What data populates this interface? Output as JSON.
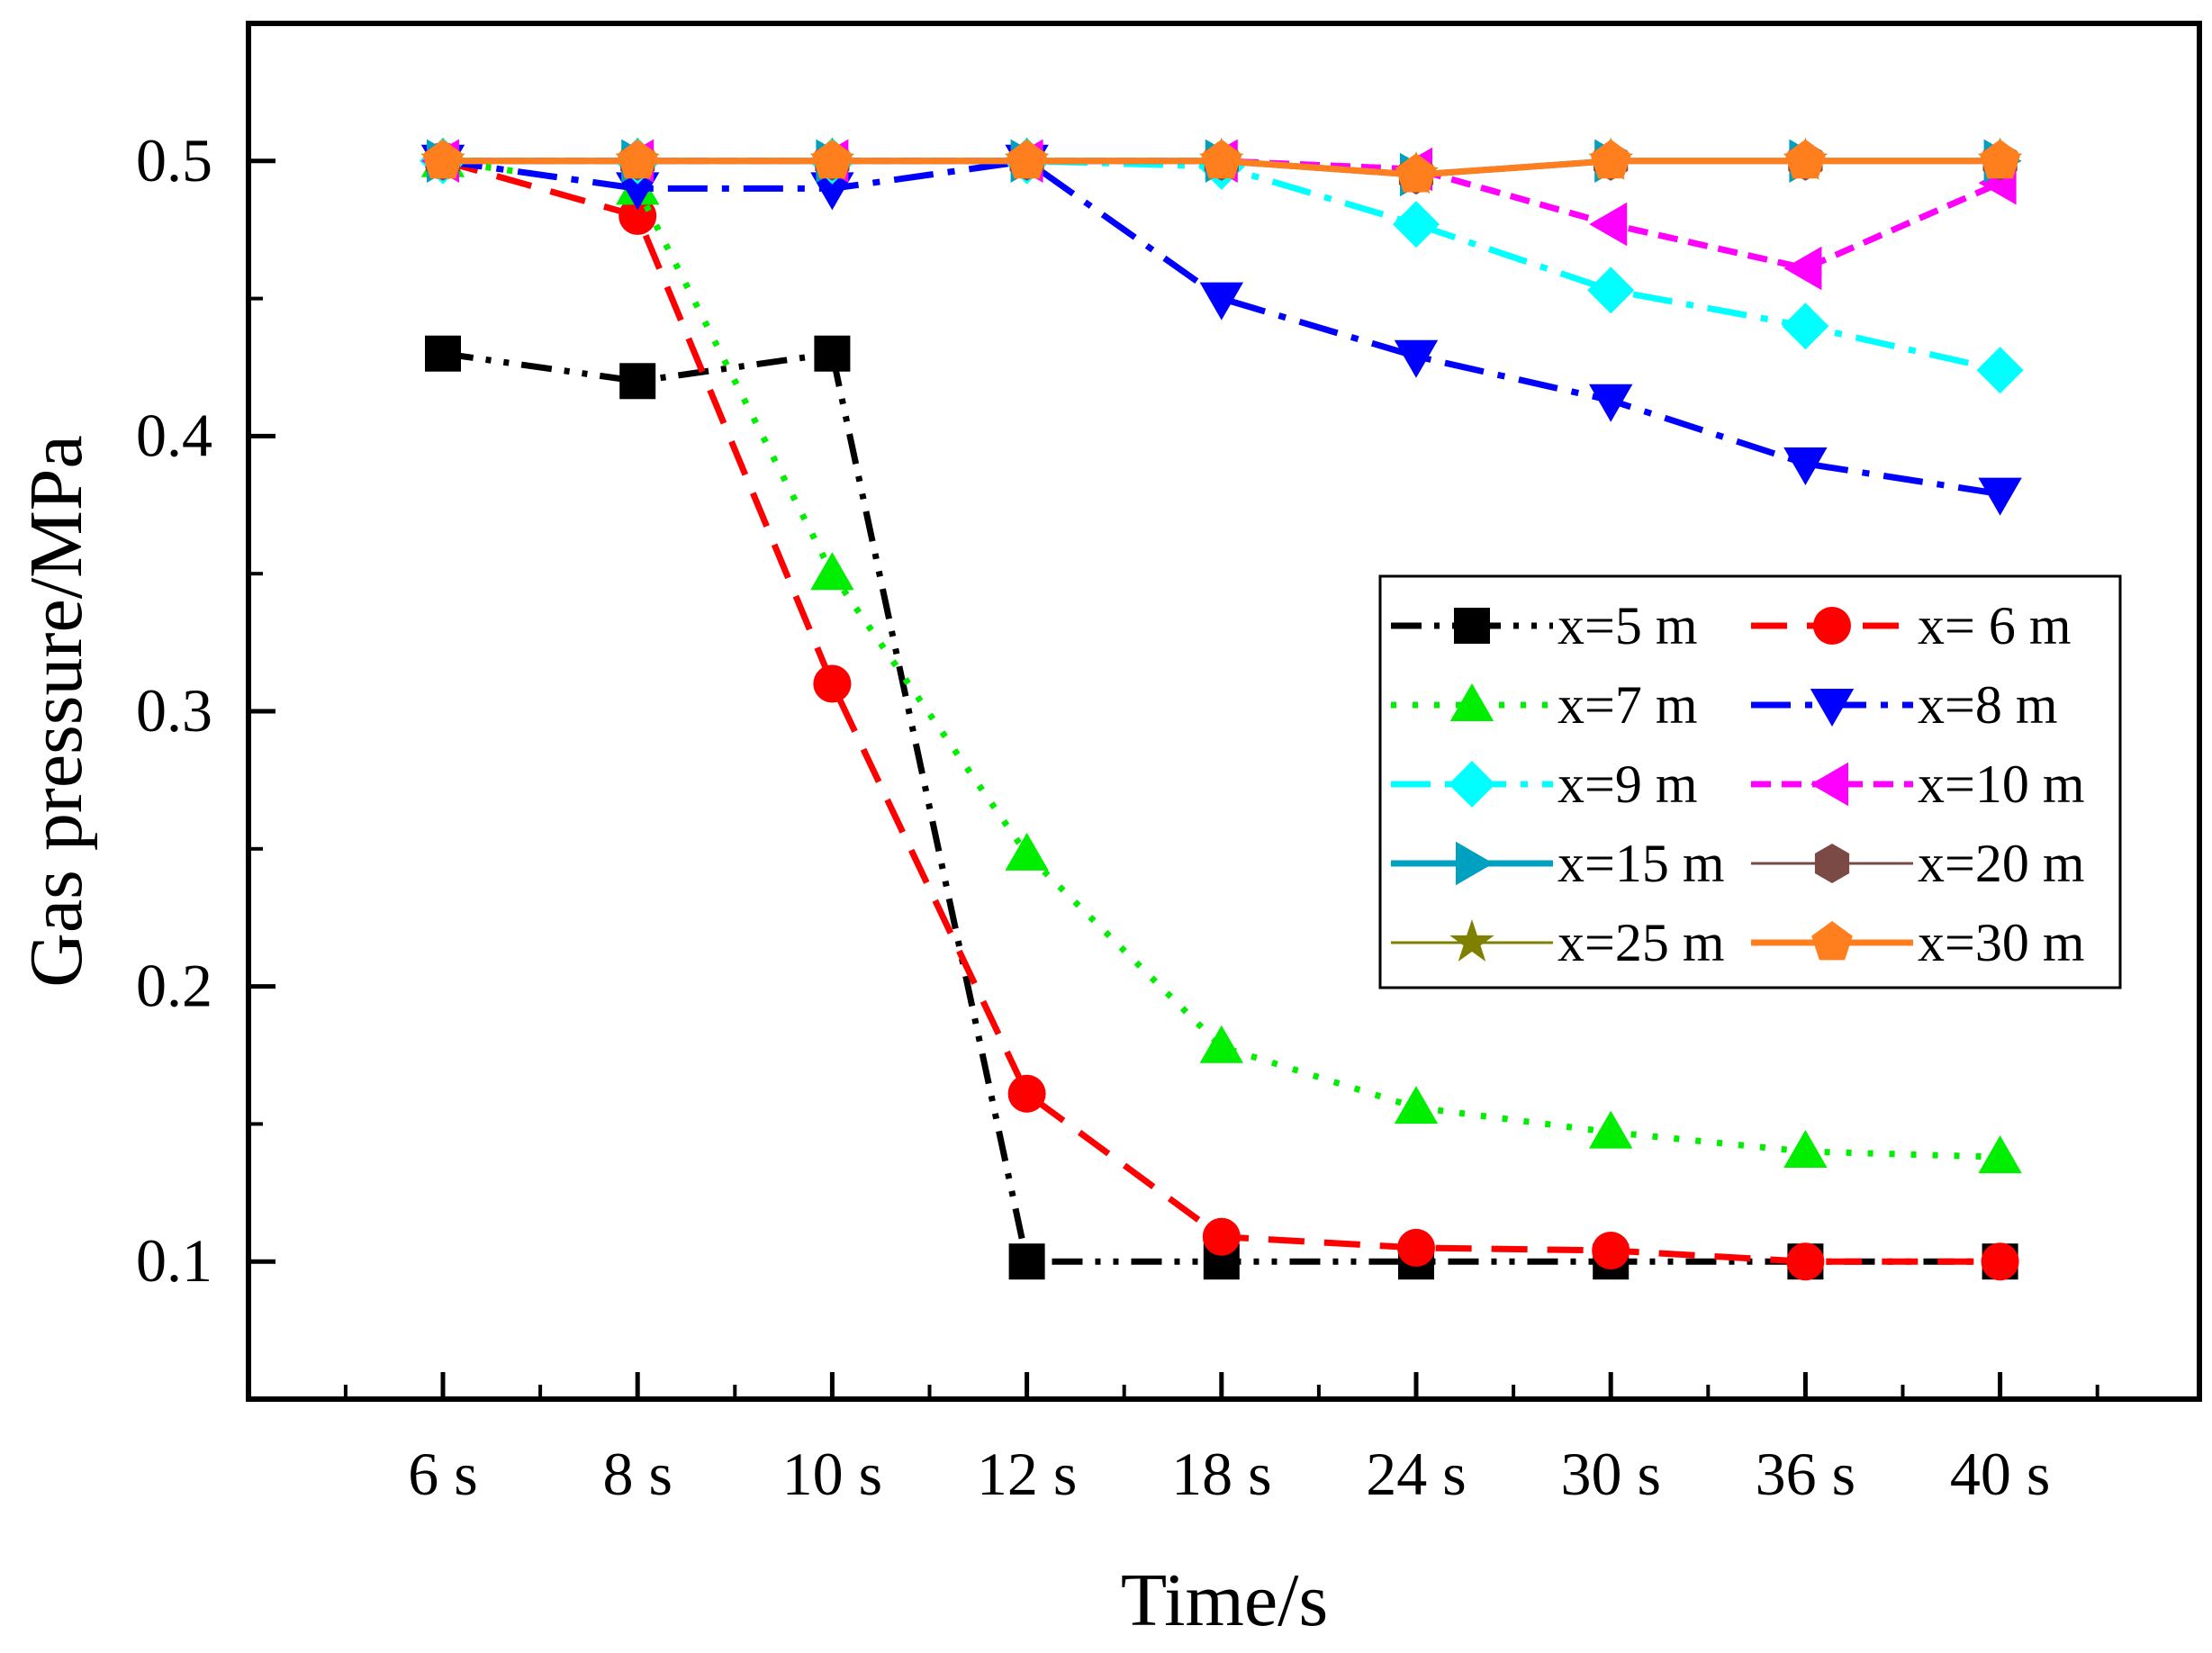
{
  "chart_data": {
    "type": "line",
    "title": "",
    "xlabel": "Time/s",
    "ylabel": "Gas pressure/MPa",
    "categories": [
      "6 s",
      "8 s",
      "10 s",
      "12 s",
      "18 s",
      "24 s",
      "30 s",
      "36 s",
      "40 s"
    ],
    "ylim": [
      0.05,
      0.55
    ],
    "yticks": [
      "0.1",
      "0.2",
      "0.3",
      "0.4",
      "0.5"
    ],
    "ytick_values": [
      0.1,
      0.2,
      0.3,
      0.4,
      0.5
    ],
    "legend_position": "center-right",
    "series": [
      {
        "name": "x=5 m",
        "color": "#000000",
        "marker": "square",
        "dash": "dashdotdot",
        "values": [
          0.43,
          0.42,
          0.43,
          0.1,
          0.1,
          0.1,
          0.1,
          0.1,
          0.1
        ]
      },
      {
        "name": "x= 6 m",
        "color": "#ff0000",
        "marker": "circle",
        "dash": "dash",
        "values": [
          0.5,
          0.48,
          0.31,
          0.161,
          0.109,
          0.105,
          0.104,
          0.1,
          0.1
        ]
      },
      {
        "name": "x=7 m",
        "color": "#00ee00",
        "marker": "triangle-up",
        "dash": "dot",
        "values": [
          0.5,
          0.49,
          0.35,
          0.248,
          0.178,
          0.156,
          0.147,
          0.14,
          0.138
        ]
      },
      {
        "name": "x=8 m",
        "color": "#0000ff",
        "marker": "triangle-down",
        "dash": "dashdot",
        "values": [
          0.5,
          0.49,
          0.49,
          0.5,
          0.45,
          0.429,
          0.413,
          0.39,
          0.379
        ]
      },
      {
        "name": "x=9 m",
        "color": "#00ffff",
        "marker": "diamond",
        "dash": "dashdot",
        "values": [
          0.5,
          0.5,
          0.5,
          0.5,
          0.498,
          0.477,
          0.453,
          0.44,
          0.424
        ]
      },
      {
        "name": "x=10 m",
        "color": "#ff00ff",
        "marker": "triangle-left",
        "dash": "shortdash",
        "values": [
          0.5,
          0.5,
          0.5,
          0.5,
          0.5,
          0.497,
          0.477,
          0.461,
          0.492
        ]
      },
      {
        "name": "x=15 m",
        "color": "#00a0c0",
        "marker": "triangle-right",
        "dash": "solid",
        "values": [
          0.5,
          0.5,
          0.5,
          0.5,
          0.5,
          0.495,
          0.5,
          0.5,
          0.5
        ]
      },
      {
        "name": "x=20 m",
        "color": "#7b4a45",
        "marker": "hexagon",
        "dash": "solid-thin",
        "values": [
          0.5,
          0.5,
          0.5,
          0.5,
          0.5,
          0.495,
          0.5,
          0.5,
          0.5
        ]
      },
      {
        "name": "x=25 m",
        "color": "#808000",
        "marker": "star",
        "dash": "solid-thin",
        "values": [
          0.5,
          0.5,
          0.5,
          0.5,
          0.5,
          0.495,
          0.5,
          0.5,
          0.5
        ]
      },
      {
        "name": "x=30 m",
        "color": "#ff7f1e",
        "marker": "pentagon",
        "dash": "solid",
        "values": [
          0.5,
          0.5,
          0.5,
          0.5,
          0.5,
          0.495,
          0.5,
          0.5,
          0.5
        ]
      }
    ]
  }
}
